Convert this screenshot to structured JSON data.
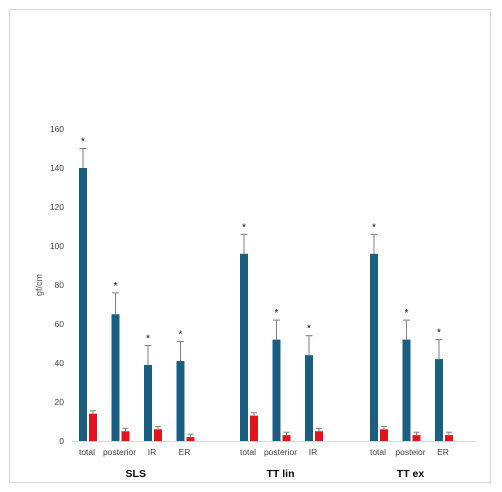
{
  "chart_data": {
    "type": "bar",
    "ylabel": "gf/cm",
    "ylim": [
      0,
      160
    ],
    "yticks": [
      0,
      20,
      40,
      60,
      80,
      100,
      120,
      140,
      160
    ],
    "grid": false,
    "legend": "none",
    "colors": {
      "dark": "#1b5f80",
      "red": "#e3131b",
      "err": "#7f7f7f"
    },
    "groups": [
      {
        "name": "SLS",
        "bars": [
          {
            "label": "total",
            "blue": 140,
            "blue_err": 10,
            "red": 14,
            "red_err": 1.5,
            "mark": "*"
          },
          {
            "label": "posterior",
            "blue": 65,
            "blue_err": 11,
            "red": 5,
            "red_err": 1.5,
            "mark": "*"
          },
          {
            "label": "IR",
            "blue": 39,
            "blue_err": 10,
            "red": 6,
            "red_err": 1.5,
            "mark": "*"
          },
          {
            "label": "ER",
            "blue": 41,
            "blue_err": 10,
            "red": 2,
            "red_err": 1.5,
            "mark": "*"
          }
        ]
      },
      {
        "name": "TT lin",
        "bars": [
          {
            "label": "total",
            "blue": 96,
            "blue_err": 10,
            "red": 13,
            "red_err": 1.5,
            "mark": "*"
          },
          {
            "label": "posterior",
            "blue": 52,
            "blue_err": 10,
            "red": 3,
            "red_err": 1.5,
            "mark": "*"
          },
          {
            "label": "IR",
            "blue": 44,
            "blue_err": 10,
            "red": 5,
            "red_err": 1.5,
            "mark": "*"
          }
        ]
      },
      {
        "name": "TT ex",
        "bars": [
          {
            "label": "total",
            "blue": 96,
            "blue_err": 10,
            "red": 6,
            "red_err": 1.5,
            "mark": "*"
          },
          {
            "label": "posteior",
            "blue": 52,
            "blue_err": 10,
            "red": 3,
            "red_err": 1.5,
            "mark": "*"
          },
          {
            "label": "ER",
            "blue": 42,
            "blue_err": 10,
            "red": 3,
            "red_err": 1.5,
            "mark": "*"
          }
        ]
      }
    ]
  }
}
